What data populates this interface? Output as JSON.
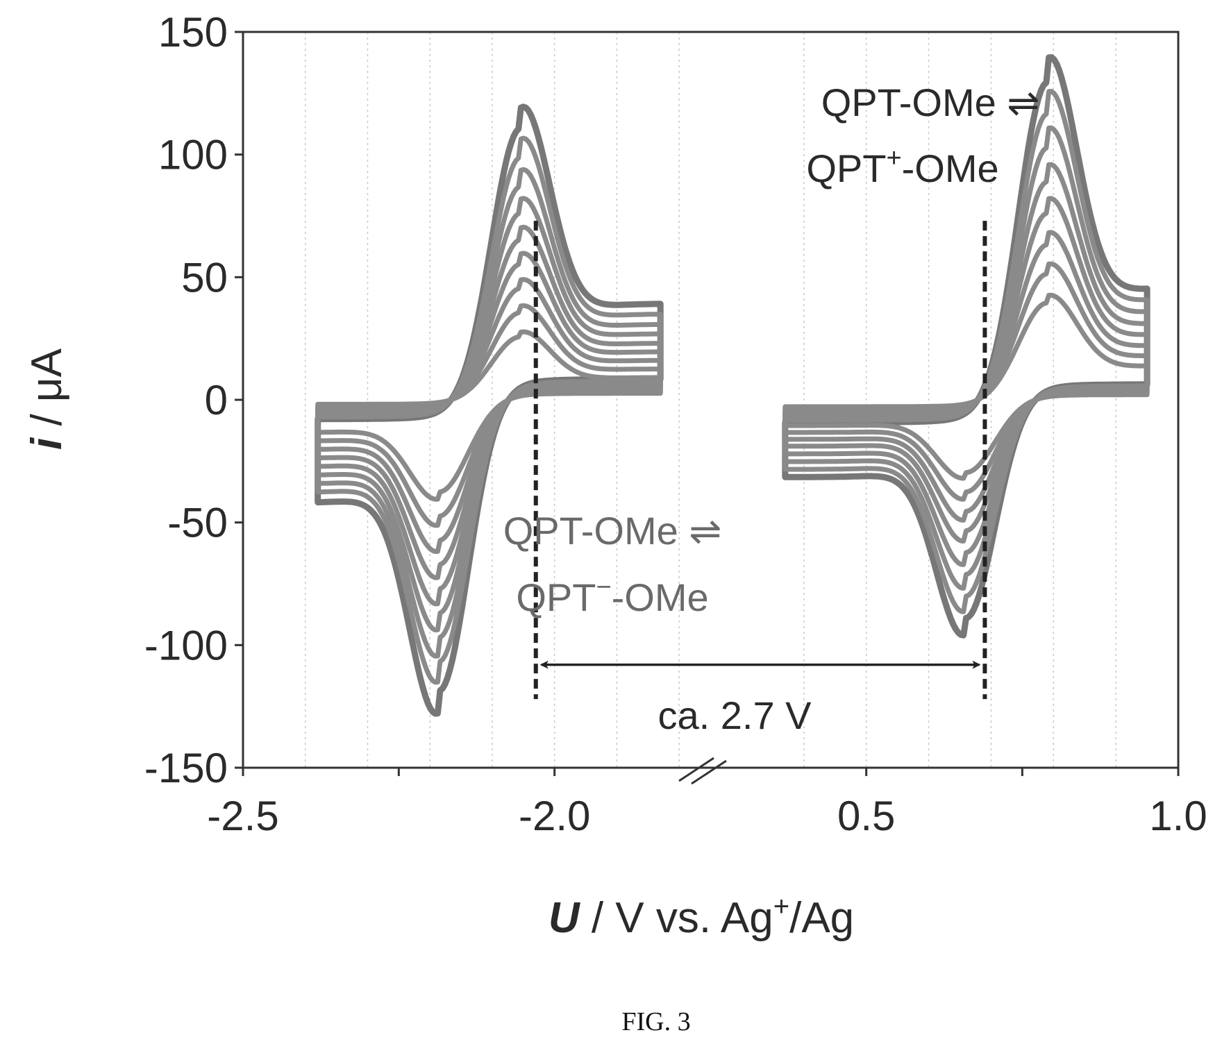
{
  "chart_data": {
    "type": "line",
    "title": "",
    "xlabel": {
      "symbol": "U",
      "unit": " / V vs. Ag",
      "sup": "+",
      "tail": "/Ag"
    },
    "ylabel": {
      "symbol": "i",
      "unit": " / μA"
    },
    "x_segments": [
      {
        "range": [
          -2.5,
          -1.75
        ],
        "tick_labels": [
          "-2.5",
          "-2.0"
        ],
        "tick_values": [
          -2.5,
          -2.0
        ]
      },
      {
        "range": [
          0.25,
          1.0
        ],
        "tick_labels": [
          "0.5",
          "1.0"
        ],
        "tick_values": [
          0.5,
          1.0
        ]
      }
    ],
    "axis_break": true,
    "ylim": [
      -150,
      150
    ],
    "yticks": [
      -150,
      -100,
      -50,
      0,
      50,
      100,
      150
    ],
    "ytick_labels": [
      "-150",
      "-100",
      "-50",
      "0",
      "50",
      "100",
      "150"
    ],
    "grid": "vertical dotted",
    "legend": "none",
    "colors": {
      "cycles": "#8a8a8a",
      "outer": "#777777",
      "axis": "#333333",
      "marker": "#222222"
    },
    "series": [
      {
        "couple": "reduction",
        "x_start": -2.38,
        "x_end": -1.83,
        "E_half": -2.12,
        "cycles": [
          {
            "ipc": -120,
            "ipa": 112
          },
          {
            "ipc": -108,
            "ipa": 100
          },
          {
            "ipc": -98,
            "ipa": 88
          },
          {
            "ipc": -88,
            "ipa": 77
          },
          {
            "ipc": -78,
            "ipa": 66
          },
          {
            "ipc": -68,
            "ipa": 56
          },
          {
            "ipc": -58,
            "ipa": 46
          },
          {
            "ipc": -48,
            "ipa": 36
          },
          {
            "ipc": -38,
            "ipa": 26
          }
        ]
      },
      {
        "couple": "oxidation",
        "x_start": 0.37,
        "x_end": 0.95,
        "E_half": 0.725,
        "cycles": [
          {
            "ipc": -90,
            "ipa": 131
          },
          {
            "ipc": -81,
            "ipa": 118
          },
          {
            "ipc": -72,
            "ipa": 104
          },
          {
            "ipc": -63,
            "ipa": 90
          },
          {
            "ipc": -54,
            "ipa": 77
          },
          {
            "ipc": -46,
            "ipa": 64
          },
          {
            "ipc": -38,
            "ipa": 52
          },
          {
            "ipc": -30,
            "ipa": 40
          }
        ]
      }
    ],
    "markers": [
      {
        "name": "reduction-onset",
        "x": -2.03
      },
      {
        "name": "oxidation-onset",
        "x": 0.69
      }
    ],
    "annotations": {
      "ox_line1": "QPT-OMe ⇌",
      "ox_line2_a": "QPT",
      "ox_line2_sup": "+",
      "ox_line2_b": "-OMe",
      "red_line1": "QPT-OMe ⇌",
      "red_line2_a": "QPT",
      "red_line2_sup": "−",
      "red_line2_b": "-OMe",
      "gap_label": "ca. 2.7 V"
    }
  },
  "caption": "FIG. 3"
}
